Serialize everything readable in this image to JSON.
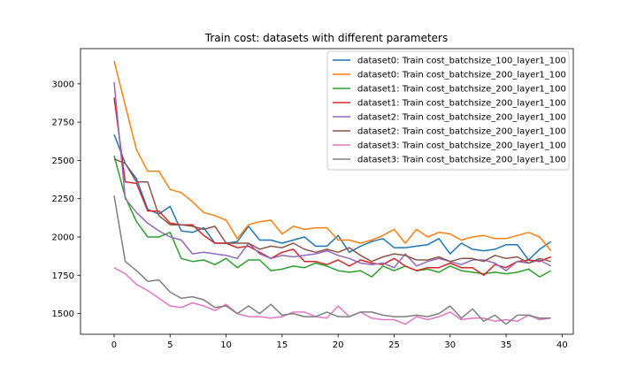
{
  "chart_data": {
    "type": "line",
    "title": "Train cost: datasets with different parameters",
    "xlabel": "",
    "ylabel": "",
    "xlim": [
      -3,
      41
    ],
    "ylim": [
      1365,
      3230
    ],
    "xticks": [
      0,
      5,
      10,
      15,
      20,
      25,
      30,
      35,
      40
    ],
    "yticks": [
      1500,
      1750,
      2000,
      2250,
      2500,
      2750,
      3000
    ],
    "grid": false,
    "legend_position": "upper-right",
    "x": [
      0,
      1,
      2,
      3,
      4,
      5,
      6,
      7,
      8,
      9,
      10,
      11,
      12,
      13,
      14,
      15,
      16,
      17,
      18,
      19,
      20,
      21,
      22,
      23,
      24,
      25,
      26,
      27,
      28,
      29,
      30,
      31,
      32,
      33,
      34,
      35,
      36,
      37,
      38,
      39
    ],
    "series": [
      {
        "name": "dataset0: Train cost_batchsize_100_layer1_100",
        "color": "#1f77b4",
        "values": [
          2670,
          2480,
          2380,
          2180,
          2150,
          2200,
          2040,
          2030,
          2060,
          1960,
          1960,
          1970,
          2070,
          1980,
          1980,
          1960,
          1980,
          2000,
          1940,
          1940,
          2010,
          1900,
          1940,
          1970,
          1990,
          1930,
          1930,
          1940,
          1950,
          1990,
          1890,
          1960,
          1920,
          1910,
          1920,
          1950,
          1950,
          1850,
          1920,
          1970
        ]
      },
      {
        "name": "dataset0: Train cost_batchsize_200_layer1_100",
        "color": "#ff7f0e",
        "values": [
          3150,
          2860,
          2570,
          2430,
          2430,
          2310,
          2290,
          2230,
          2160,
          2140,
          2110,
          1990,
          2080,
          2100,
          2110,
          2020,
          2070,
          2050,
          2060,
          2060,
          1980,
          1980,
          1960,
          1980,
          2010,
          2050,
          1960,
          2050,
          2000,
          2030,
          2020,
          1980,
          2000,
          2010,
          1990,
          1990,
          2010,
          2030,
          2000,
          1910
        ]
      },
      {
        "name": "dataset1: Train cost_batchsize_200_layer1_100",
        "color": "#2ca02c",
        "values": [
          2530,
          2260,
          2100,
          2000,
          2000,
          2030,
          1860,
          1840,
          1850,
          1820,
          1860,
          1800,
          1850,
          1850,
          1780,
          1790,
          1810,
          1800,
          1830,
          1810,
          1780,
          1770,
          1780,
          1740,
          1810,
          1780,
          1810,
          1780,
          1790,
          1770,
          1810,
          1780,
          1770,
          1760,
          1770,
          1760,
          1770,
          1790,
          1740,
          1780
        ]
      },
      {
        "name": "dataset1: Train cost_batchsize_200_layer1_100",
        "color": "#d62728",
        "values": [
          2910,
          2360,
          2350,
          2170,
          2170,
          2090,
          2080,
          2080,
          2010,
          1960,
          1960,
          1930,
          1940,
          1900,
          1860,
          1900,
          1920,
          1840,
          1840,
          1820,
          1850,
          1810,
          1850,
          1830,
          1820,
          1860,
          1810,
          1780,
          1800,
          1800,
          1830,
          1800,
          1800,
          1750,
          1820,
          1800,
          1840,
          1850,
          1840,
          1870
        ]
      },
      {
        "name": "dataset2: Train cost_batchsize_200_layer1_100",
        "color": "#9467bd",
        "values": [
          3010,
          2250,
          2160,
          2090,
          2040,
          2000,
          1980,
          1890,
          1900,
          1890,
          1880,
          1860,
          1960,
          1890,
          1860,
          1880,
          1870,
          1880,
          1890,
          1910,
          1880,
          1860,
          1830,
          1820,
          1830,
          1800,
          1890,
          1810,
          1840,
          1860,
          1840,
          1820,
          1850,
          1850,
          1830,
          1780,
          1840,
          1830,
          1850,
          1810
        ]
      },
      {
        "name": "dataset2: Train cost_batchsize_200_layer1_100",
        "color": "#8c564b",
        "values": [
          2510,
          2480,
          2360,
          2360,
          2140,
          2080,
          2080,
          2070,
          2050,
          2070,
          1960,
          1960,
          1960,
          1920,
          1940,
          1930,
          1960,
          1920,
          1900,
          1920,
          1900,
          1930,
          1880,
          1840,
          1870,
          1890,
          1880,
          1850,
          1850,
          1870,
          1840,
          1860,
          1860,
          1840,
          1880,
          1860,
          1870,
          1830,
          1860,
          1840
        ]
      },
      {
        "name": "dataset3: Train cost_batchsize_200_layer1_100",
        "color": "#e377c2",
        "values": [
          1800,
          1760,
          1690,
          1650,
          1600,
          1550,
          1540,
          1570,
          1550,
          1520,
          1560,
          1500,
          1480,
          1480,
          1470,
          1480,
          1510,
          1510,
          1480,
          1470,
          1550,
          1480,
          1510,
          1470,
          1460,
          1460,
          1430,
          1480,
          1460,
          1480,
          1510,
          1460,
          1470,
          1470,
          1450,
          1460,
          1450,
          1490,
          1460,
          1470
        ]
      },
      {
        "name": "dataset3: Train cost_batchsize_200_layer1_100",
        "color": "#7f7f7f",
        "values": [
          2270,
          1840,
          1780,
          1710,
          1720,
          1640,
          1600,
          1610,
          1590,
          1540,
          1550,
          1500,
          1550,
          1500,
          1560,
          1490,
          1500,
          1480,
          1480,
          1510,
          1480,
          1480,
          1510,
          1510,
          1490,
          1480,
          1480,
          1490,
          1480,
          1500,
          1550,
          1470,
          1530,
          1450,
          1490,
          1430,
          1490,
          1490,
          1470,
          1470
        ]
      }
    ]
  }
}
